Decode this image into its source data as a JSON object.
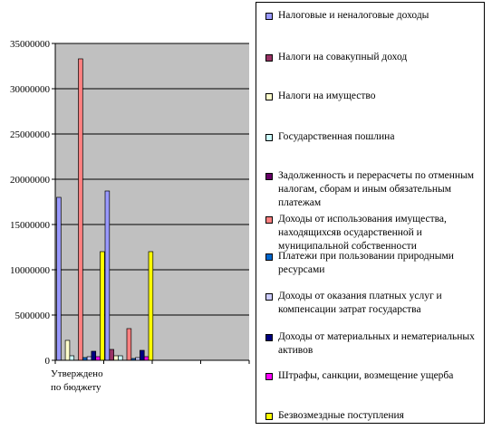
{
  "chart_data": {
    "type": "bar",
    "categories": [
      "Утверждено по бюджету",
      "",
      "",
      ""
    ],
    "category_label_lines": [
      "Утверждено",
      "по бюджету"
    ],
    "ylim": [
      0,
      35000000
    ],
    "yticks": [
      "0",
      "5000000",
      "10000000",
      "15000000",
      "20000000",
      "25000000",
      "30000000",
      "35000000"
    ],
    "grid": true,
    "legend_position": "right",
    "series": [
      {
        "name": "Налоговые и неналоговые доходы",
        "color": "#9999ff",
        "values": [
          18000000,
          18700000,
          null,
          null
        ]
      },
      {
        "name": "Налоги на совакупный доход",
        "color": "#993366",
        "values": [
          0,
          1200000,
          null,
          null
        ]
      },
      {
        "name": "Налоги на имущество",
        "color": "#ffffcc",
        "values": [
          2200000,
          500000,
          null,
          null
        ]
      },
      {
        "name": "Государственная пошлина",
        "color": "#ccffff",
        "values": [
          500000,
          500000,
          null,
          null
        ]
      },
      {
        "name": "Задолженность и перерасчеты по отменным налогам, сборам и иным обязательным платежам",
        "color": "#660066",
        "values": [
          0,
          0,
          null,
          null
        ]
      },
      {
        "name": "Доходы от использования имущества, находящихсяв осударственной и муниципальной собственности",
        "color": "#ff8080",
        "values": [
          33300000,
          3500000,
          null,
          null
        ]
      },
      {
        "name": "Платежи при пользовании природными ресурсами",
        "color": "#0066cc",
        "values": [
          300000,
          200000,
          null,
          null
        ]
      },
      {
        "name": "Доходы от оказания платных услуг и компенсации затрат государства",
        "color": "#ccccff",
        "values": [
          400000,
          300000,
          null,
          null
        ]
      },
      {
        "name": "Доходы от материальных и нематериальных активов",
        "color": "#000080",
        "values": [
          1000000,
          1100000,
          null,
          null
        ]
      },
      {
        "name": "Штрафы, санкции, возмещение ущерба",
        "color": "#ff00ff",
        "values": [
          400000,
          400000,
          null,
          null
        ]
      },
      {
        "name": "Безвозмездные поступления",
        "color": "#ffff00",
        "values": [
          12000000,
          12000000,
          null,
          null
        ]
      }
    ]
  }
}
